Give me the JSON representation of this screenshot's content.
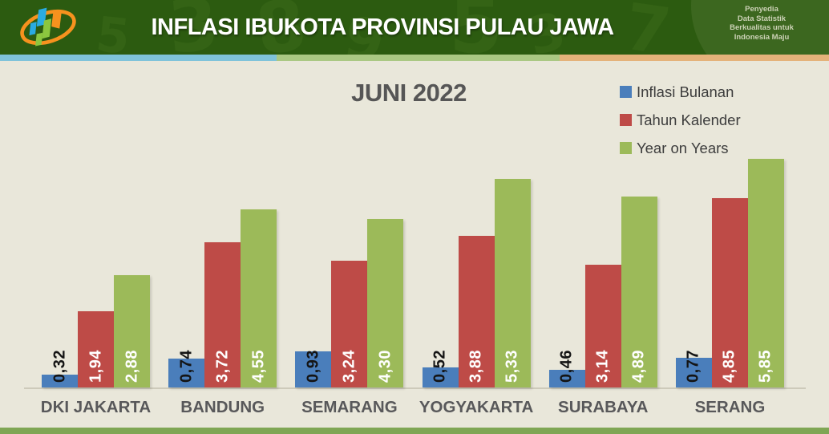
{
  "header": {
    "title": "INFLASI IBUKOTA PROVINSI PULAU JAWA",
    "tagline_lines": [
      "Penyedia",
      "Data Statistik",
      "Berkualitas untuk",
      "Indonesia Maju"
    ],
    "logo_name": "bps-statistics-logo",
    "pattern_digits": [
      "8",
      "9",
      "5",
      "3",
      "5",
      "7",
      "3"
    ]
  },
  "colors": {
    "header_bg": "#2c5b10",
    "corner_circle": "#3c671f",
    "body_bg": "#e9e7da",
    "stripe_segments": [
      "#7fc3da",
      "#aac883",
      "#e4b27a"
    ],
    "bottom_strip": "#7fa654",
    "series_blue": "#4A7EBB",
    "series_red": "#BE4B47",
    "series_green": "#9CBA59",
    "logo_blue": "#2aabe2",
    "logo_orange": "#f6921e",
    "logo_green": "#8cc63f"
  },
  "chart_data": {
    "type": "bar",
    "title": "JUNI 2022",
    "categories": [
      "DKI JAKARTA",
      "BANDUNG",
      "SEMARANG",
      "YOGYAKARTA",
      "SURABAYA",
      "SERANG"
    ],
    "series": [
      {
        "name": "Inflasi Bulanan",
        "color": "#4A7EBB",
        "label_color": "#141414",
        "values": [
          0.32,
          0.74,
          0.93,
          0.52,
          0.46,
          0.77
        ],
        "labels": [
          "0,32",
          "0,74",
          "0,93",
          "0,52",
          "0,46",
          "0,77"
        ]
      },
      {
        "name": "Tahun Kalender",
        "color": "#BE4B47",
        "label_color": "#ffffff",
        "values": [
          1.94,
          3.72,
          3.24,
          3.88,
          3.14,
          4.85
        ],
        "labels": [
          "1,94",
          "3,72",
          "3,24",
          "3,88",
          "3,14",
          "4,85"
        ]
      },
      {
        "name": "Year on Years",
        "color": "#9CBA59",
        "label_color": "#ffffff",
        "values": [
          2.88,
          4.55,
          4.3,
          5.33,
          4.89,
          5.85
        ],
        "labels": [
          "2,88",
          "4,55",
          "4,30",
          "5,33",
          "4,89",
          "5,85"
        ]
      }
    ],
    "ylim": [
      0,
      5.95
    ],
    "grid": false,
    "axis_labels_hidden": true,
    "legend_position": "top-right",
    "value_label_rotation": 90,
    "decimal_separator": ","
  }
}
